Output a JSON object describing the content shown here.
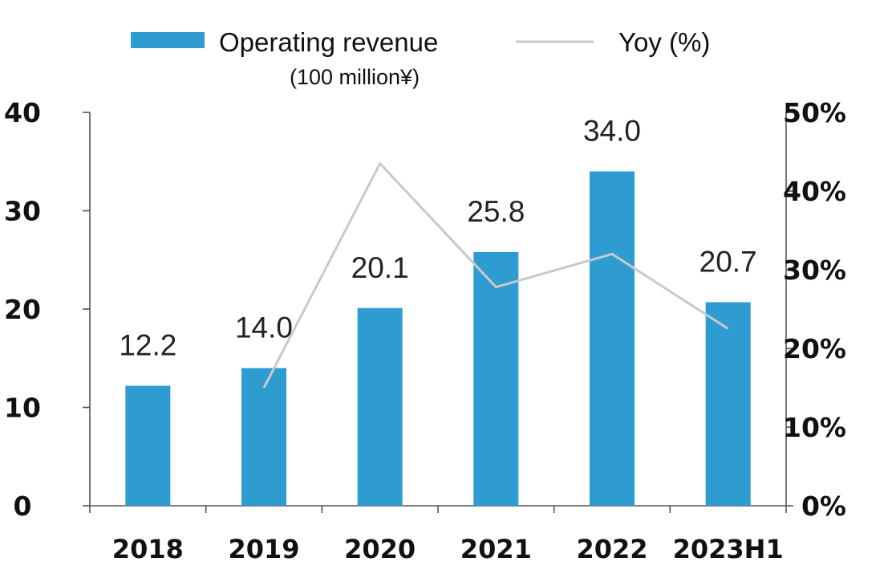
{
  "chart_data": {
    "type": "bar",
    "categories": [
      "2018",
      "2019",
      "2020",
      "2021",
      "2022",
      "2023H1"
    ],
    "series": [
      {
        "name": "Operating revenue",
        "name_sub": "(100 million¥)",
        "kind": "bar",
        "axis": "left",
        "values": [
          12.2,
          14.0,
          20.1,
          25.8,
          34.0,
          20.7
        ],
        "labels": [
          "12.2",
          "14.0",
          "20.1",
          "25.8",
          "34.0",
          "20.7"
        ],
        "color": "#2E9BD1"
      },
      {
        "name": "Yoy (%)",
        "kind": "line",
        "axis": "right",
        "values": [
          null,
          15,
          43.5,
          27.8,
          32,
          22.5
        ],
        "color": "#C9C9C9"
      }
    ],
    "y_left": {
      "ylim": [
        0,
        40
      ],
      "ticks": [
        "0",
        "10",
        "20",
        "30",
        "40"
      ],
      "tick_values": [
        0,
        10,
        20,
        30,
        40
      ]
    },
    "y_right": {
      "ylim": [
        0,
        50
      ],
      "ticks": [
        "0%",
        "10%",
        "20%",
        "30%",
        "40%",
        "50%"
      ],
      "tick_values": [
        0,
        10,
        20,
        30,
        40,
        50
      ]
    },
    "legend": "top",
    "grid": false
  }
}
